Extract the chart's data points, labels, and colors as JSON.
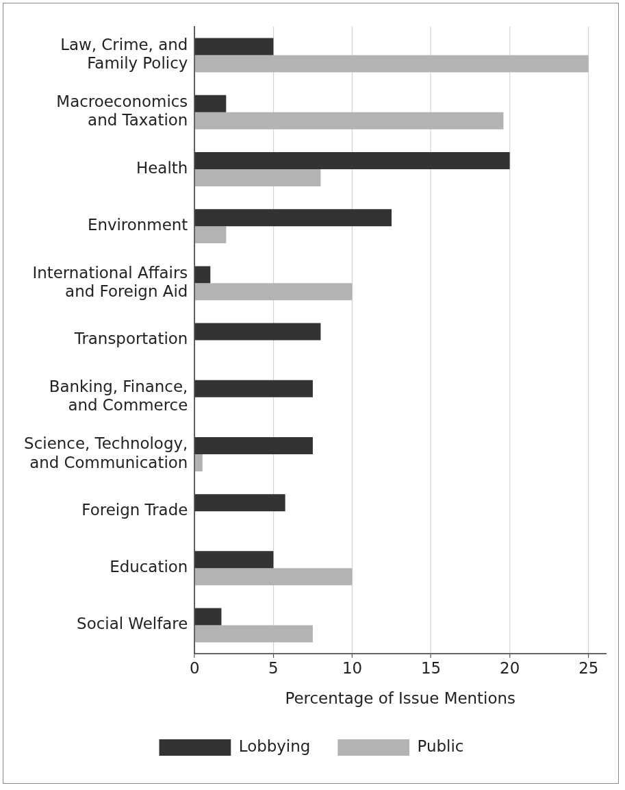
{
  "chart_data": {
    "type": "bar",
    "orientation": "horizontal",
    "categories": [
      "Law, Crime, and\nFamily Policy",
      "Macroeconomics\nand Taxation",
      "Health",
      "Environment",
      "International Affairs\nand Foreign Aid",
      "Transportation",
      "Banking, Finance,\nand Commerce",
      "Science, Technology,\nand Communication",
      "Foreign Trade",
      "Education",
      "Social Welfare"
    ],
    "series": [
      {
        "name": "Lobbying",
        "color": "#333333",
        "values": [
          5.0,
          2.0,
          20.0,
          12.5,
          1.0,
          8.0,
          7.5,
          7.5,
          5.75,
          5.0,
          1.7
        ]
      },
      {
        "name": "Public",
        "color": "#b3b3b3",
        "values": [
          25.0,
          19.6,
          8.0,
          2.0,
          10.0,
          null,
          null,
          0.5,
          null,
          10.0,
          7.5
        ]
      }
    ],
    "xlabel": "Percentage of Issue Mentions",
    "xlim": [
      0,
      26.1
    ],
    "xticks": [
      0,
      5,
      10,
      15,
      20,
      25
    ],
    "grid": "x",
    "legend": "bottom"
  }
}
